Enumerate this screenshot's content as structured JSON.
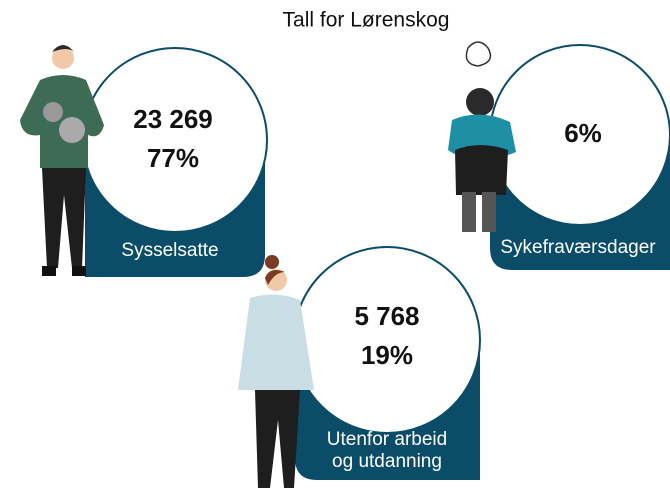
{
  "header": {
    "title": "Tall for Lørenskog"
  },
  "cards": [
    {
      "count": "23 269",
      "share": "77%",
      "label": [
        "Sysselsatte"
      ]
    },
    {
      "count": null,
      "share": "6%",
      "label": [
        "Sykefraværsdager"
      ]
    },
    {
      "count": "5 768",
      "share": "19%",
      "label": [
        "Utenfor arbeid",
        "og utdanning"
      ]
    }
  ]
}
